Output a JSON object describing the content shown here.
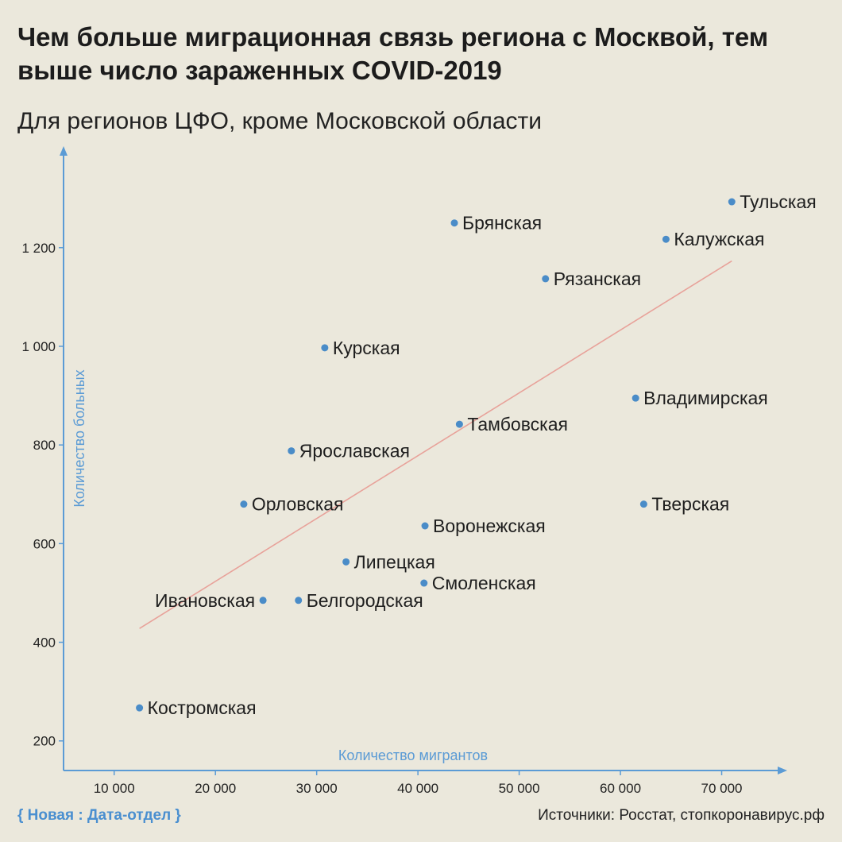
{
  "title": "Чем больше миграционная связь региона с Москвой, тем выше число зараженных COVID-2019",
  "subtitle": "Для регионов ЦФО, кроме Московской области",
  "footer": {
    "brand": "{ Новая : Дата-отдел }",
    "sources": "Источники: Росстат, стопкоронавирус.рф"
  },
  "colors": {
    "background": "#ebe8dc",
    "axis": "#5b9bd5",
    "point": "#4a8cc8",
    "trend": "#e8a29a",
    "brand": "#4a8fd0"
  },
  "chart_data": {
    "type": "scatter",
    "xlabel": "Количество мигрантов",
    "ylabel": "Количество больных",
    "xlim": [
      5000,
      76000
    ],
    "ylim": [
      140,
      1380
    ],
    "xticks": [
      10000,
      20000,
      30000,
      40000,
      50000,
      60000,
      70000
    ],
    "xtick_labels": [
      "10 000",
      "20 000",
      "30 000",
      "40 000",
      "50 000",
      "60 000",
      "70 000"
    ],
    "yticks": [
      200,
      400,
      600,
      800,
      1000,
      1200
    ],
    "ytick_labels": [
      "200",
      "400",
      "600",
      "800",
      "1 000",
      "1 200"
    ],
    "grid": false,
    "trendline": {
      "x": [
        12500,
        71000
      ],
      "y": [
        428,
        1173
      ]
    },
    "points": [
      {
        "label": "Тульская",
        "x": 71000,
        "y": 1293
      },
      {
        "label": "Брянская",
        "x": 43600,
        "y": 1250
      },
      {
        "label": "Калужская",
        "x": 64500,
        "y": 1217
      },
      {
        "label": "Рязанская",
        "x": 52600,
        "y": 1137
      },
      {
        "label": "Курская",
        "x": 30800,
        "y": 997
      },
      {
        "label": "Владимирская",
        "x": 61500,
        "y": 895
      },
      {
        "label": "Тамбовская",
        "x": 44100,
        "y": 842
      },
      {
        "label": "Ярославская",
        "x": 27500,
        "y": 788
      },
      {
        "label": "Орловская",
        "x": 22800,
        "y": 680
      },
      {
        "label": "Тверская",
        "x": 62300,
        "y": 680
      },
      {
        "label": "Воронежская",
        "x": 40700,
        "y": 636
      },
      {
        "label": "Липецкая",
        "x": 32900,
        "y": 563
      },
      {
        "label": "Смоленская",
        "x": 40600,
        "y": 520
      },
      {
        "label": "Ивановская",
        "x": 24700,
        "y": 485,
        "labelSide": "left"
      },
      {
        "label": "Белгородская",
        "x": 28200,
        "y": 485
      },
      {
        "label": "Костромская",
        "x": 12500,
        "y": 267
      }
    ]
  }
}
